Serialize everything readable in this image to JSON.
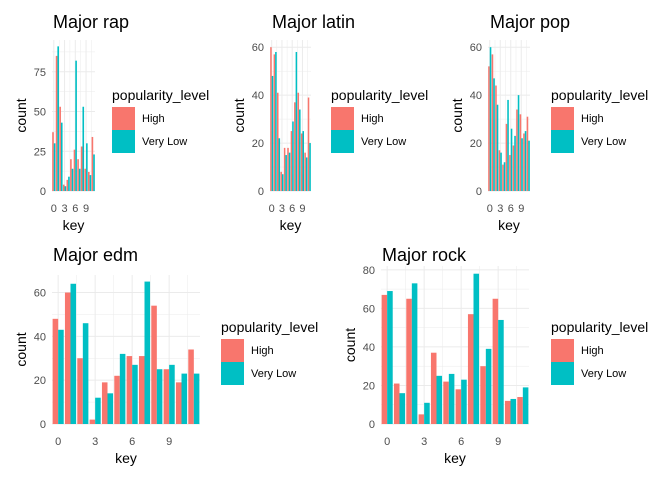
{
  "legend": {
    "title": "popularity_level",
    "items": [
      {
        "label": "High",
        "color": "#F8766D"
      },
      {
        "label": "Very Low",
        "color": "#00BFC4"
      }
    ]
  },
  "chart_data": [
    {
      "type": "bar",
      "title": "Major rap",
      "xlabel": "key",
      "ylabel": "count",
      "x": [
        0,
        1,
        2,
        3,
        4,
        5,
        6,
        7,
        8,
        9,
        10,
        11
      ],
      "xticks": [
        0,
        3,
        6,
        9
      ],
      "ylim": [
        0,
        95
      ],
      "yticks": [
        0,
        25,
        50,
        75
      ],
      "series": [
        {
          "name": "High",
          "values": [
            37,
            85,
            53,
            4,
            7,
            20,
            26,
            20,
            28,
            14,
            12,
            34
          ]
        },
        {
          "name": "Very Low",
          "values": [
            30,
            91,
            43,
            3,
            9,
            14,
            82,
            14,
            53,
            30,
            10,
            23
          ]
        }
      ]
    },
    {
      "type": "bar",
      "title": "Major latin",
      "xlabel": "key",
      "ylabel": "count",
      "x": [
        0,
        1,
        2,
        3,
        4,
        5,
        6,
        7,
        8,
        9,
        10,
        11
      ],
      "xticks": [
        0,
        3,
        6,
        9
      ],
      "ylim": [
        0,
        63
      ],
      "yticks": [
        0,
        20,
        40,
        60
      ],
      "series": [
        {
          "name": "High",
          "values": [
            60,
            57,
            41,
            8,
            18,
            18,
            25,
            37,
            41,
            24,
            16,
            39
          ]
        },
        {
          "name": "Very Low",
          "values": [
            48,
            58,
            22,
            7,
            15,
            16,
            29,
            58,
            34,
            25,
            14,
            20
          ]
        }
      ]
    },
    {
      "type": "bar",
      "title": "Major pop",
      "xlabel": "key",
      "ylabel": "count",
      "x": [
        0,
        1,
        2,
        3,
        4,
        5,
        6,
        7,
        8,
        9,
        10,
        11
      ],
      "xticks": [
        0,
        3,
        6,
        9
      ],
      "ylim": [
        0,
        63
      ],
      "yticks": [
        0,
        20,
        40,
        60
      ],
      "series": [
        {
          "name": "High",
          "values": [
            52,
            57,
            44,
            17,
            11,
            28,
            15,
            19,
            34,
            32,
            24,
            31
          ]
        },
        {
          "name": "Very Low",
          "values": [
            60,
            47,
            36,
            16,
            12,
            38,
            26,
            23,
            40,
            22,
            25,
            21
          ]
        }
      ]
    },
    {
      "type": "bar",
      "title": "Major edm",
      "xlabel": "key",
      "ylabel": "count",
      "x": [
        0,
        1,
        2,
        3,
        4,
        5,
        6,
        7,
        8,
        9,
        10,
        11
      ],
      "xticks": [
        0,
        3,
        6,
        9
      ],
      "ylim": [
        0,
        68
      ],
      "yticks": [
        0,
        20,
        40,
        60
      ],
      "series": [
        {
          "name": "High",
          "values": [
            48,
            60,
            30,
            2,
            19,
            22,
            31,
            31,
            54,
            25,
            19,
            34
          ]
        },
        {
          "name": "Very Low",
          "values": [
            43,
            64,
            46,
            12,
            14,
            32,
            27,
            65,
            25,
            27,
            23,
            23
          ]
        }
      ]
    },
    {
      "type": "bar",
      "title": "Major rock",
      "xlabel": "key",
      "ylabel": "count",
      "x": [
        0,
        1,
        2,
        3,
        4,
        5,
        6,
        7,
        8,
        9,
        10,
        11
      ],
      "xticks": [
        0,
        3,
        6,
        9
      ],
      "ylim": [
        0,
        82
      ],
      "yticks": [
        0,
        20,
        40,
        60,
        80
      ],
      "series": [
        {
          "name": "High",
          "values": [
            67,
            21,
            65,
            5,
            37,
            22,
            18,
            57,
            30,
            65,
            12,
            14
          ]
        },
        {
          "name": "Very Low",
          "values": [
            69,
            16,
            73,
            11,
            25,
            26,
            23,
            78,
            39,
            54,
            13,
            19
          ]
        }
      ]
    }
  ]
}
